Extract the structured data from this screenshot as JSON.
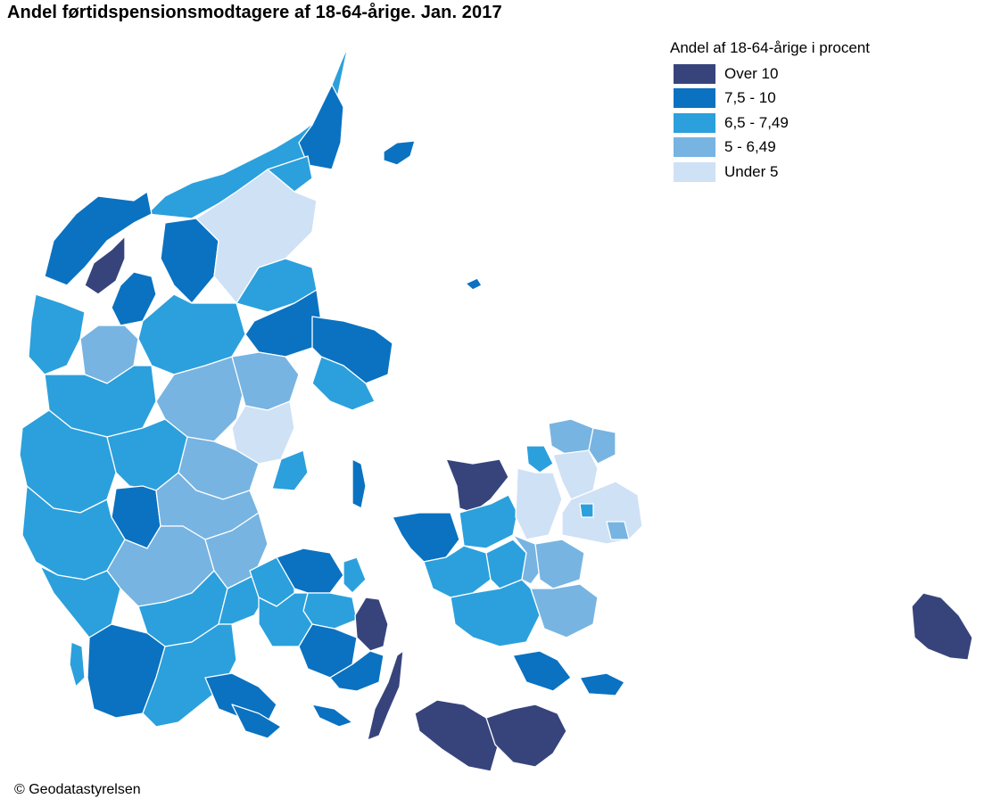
{
  "title": "Andel førtidspensionsmodtagere af 18-64-årige. Jan. 2017",
  "legend": {
    "title": "Andel af 18-64-årige i procent",
    "items": [
      {
        "label": "Over 10",
        "color": "#37447c"
      },
      {
        "label": "7,5 - 10",
        "color": "#0a72c1"
      },
      {
        "label": "6,5 - 7,49",
        "color": "#2ba0dc"
      },
      {
        "label": "5 - 6,49",
        "color": "#77b4e2"
      },
      {
        "label": "Under 5",
        "color": "#cfe1f5"
      }
    ]
  },
  "copyright": "© Geodatastyrelsen"
}
